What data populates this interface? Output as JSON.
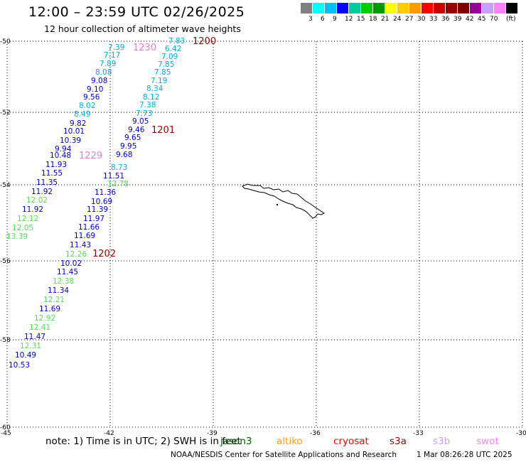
{
  "title": "12:00 – 23:59 UTC 02/26/2025",
  "subtitle": "12 hour collection of altimeter wave heights",
  "legend": {
    "unit": "(ft)",
    "colors": [
      "#808080",
      "#00ffff",
      "#00bfff",
      "#0000ff",
      "#00cc99",
      "#00cc00",
      "#009900",
      "#ffff00",
      "#ffcc00",
      "#ff9900",
      "#ff0000",
      "#cc0000",
      "#990000",
      "#800000",
      "#990099",
      "#c8a0ff",
      "#ff80ff",
      "#000000"
    ],
    "ticks": [
      "3",
      "6",
      "9",
      "12",
      "15",
      "18",
      "21",
      "24",
      "27",
      "30",
      "33",
      "36",
      "39",
      "42",
      "45",
      "70"
    ]
  },
  "map": {
    "lon_ticks": [
      "-45",
      "-42",
      "-39",
      "-36",
      "-33",
      "-30"
    ],
    "lat_ticks": [
      "-50",
      "-52",
      "-54",
      "-56",
      "-58",
      "-60"
    ],
    "time_labels": [
      {
        "text": "1200",
        "color": "#990000"
      },
      {
        "text": "1230",
        "color": "#ee7ad0"
      },
      {
        "text": "1201",
        "color": "#990000"
      },
      {
        "text": "1229",
        "color": "#ee7ad0"
      },
      {
        "text": "1202",
        "color": "#990000"
      }
    ],
    "track_a": {
      "color": "#00aee0",
      "values": [
        "7.83",
        "6.42",
        "7.09",
        "7.85",
        "7.85",
        "7.19",
        "8.34",
        "8.12",
        "7.38",
        "7.73"
      ]
    },
    "track_b": {
      "values": [
        "9.05",
        "9.46",
        "9.65",
        "9.95",
        "9.68",
        "8.73",
        "12.78",
        "11.51",
        "11.36",
        "10.69",
        "11.39",
        "11.97",
        "11.66",
        "11.69",
        "11.43",
        "12.26",
        "10.02",
        "11.45",
        "12.38",
        "11.34",
        "12.21",
        "11.69",
        "12.92",
        "12.41",
        "11.47",
        "12.31",
        "10.49",
        "10.53"
      ]
    },
    "track_c": {
      "values": [
        "7.39",
        "7.17",
        "7.89",
        "8.08",
        "9.08",
        "9.10",
        "9.56",
        "8.02",
        "8.49",
        "9.82",
        "10.01",
        "10.39",
        "9.94",
        "10.48",
        "11.93",
        "11.55",
        "11.35",
        "11.92",
        "12.02",
        "11.92",
        "12.12",
        "12.05",
        "13.39"
      ]
    }
  },
  "footer": {
    "note": "note: 1) Time is in UTC; 2) SWH is in feet",
    "satellites": [
      {
        "name": "jason3",
        "color": "#006400"
      },
      {
        "name": "altiko",
        "color": "#ff9900"
      },
      {
        "name": "cryosat",
        "color": "#ff0000"
      },
      {
        "name": "s3a",
        "color": "#990000"
      },
      {
        "name": "s3b",
        "color": "#c8a0ff"
      },
      {
        "name": "swot",
        "color": "#ff80ff"
      }
    ],
    "credit": "NOAA/NESDIS Center for Satellite Applications and Research",
    "timestamp": "1 Mar 08:26:28 UTC 2025"
  }
}
